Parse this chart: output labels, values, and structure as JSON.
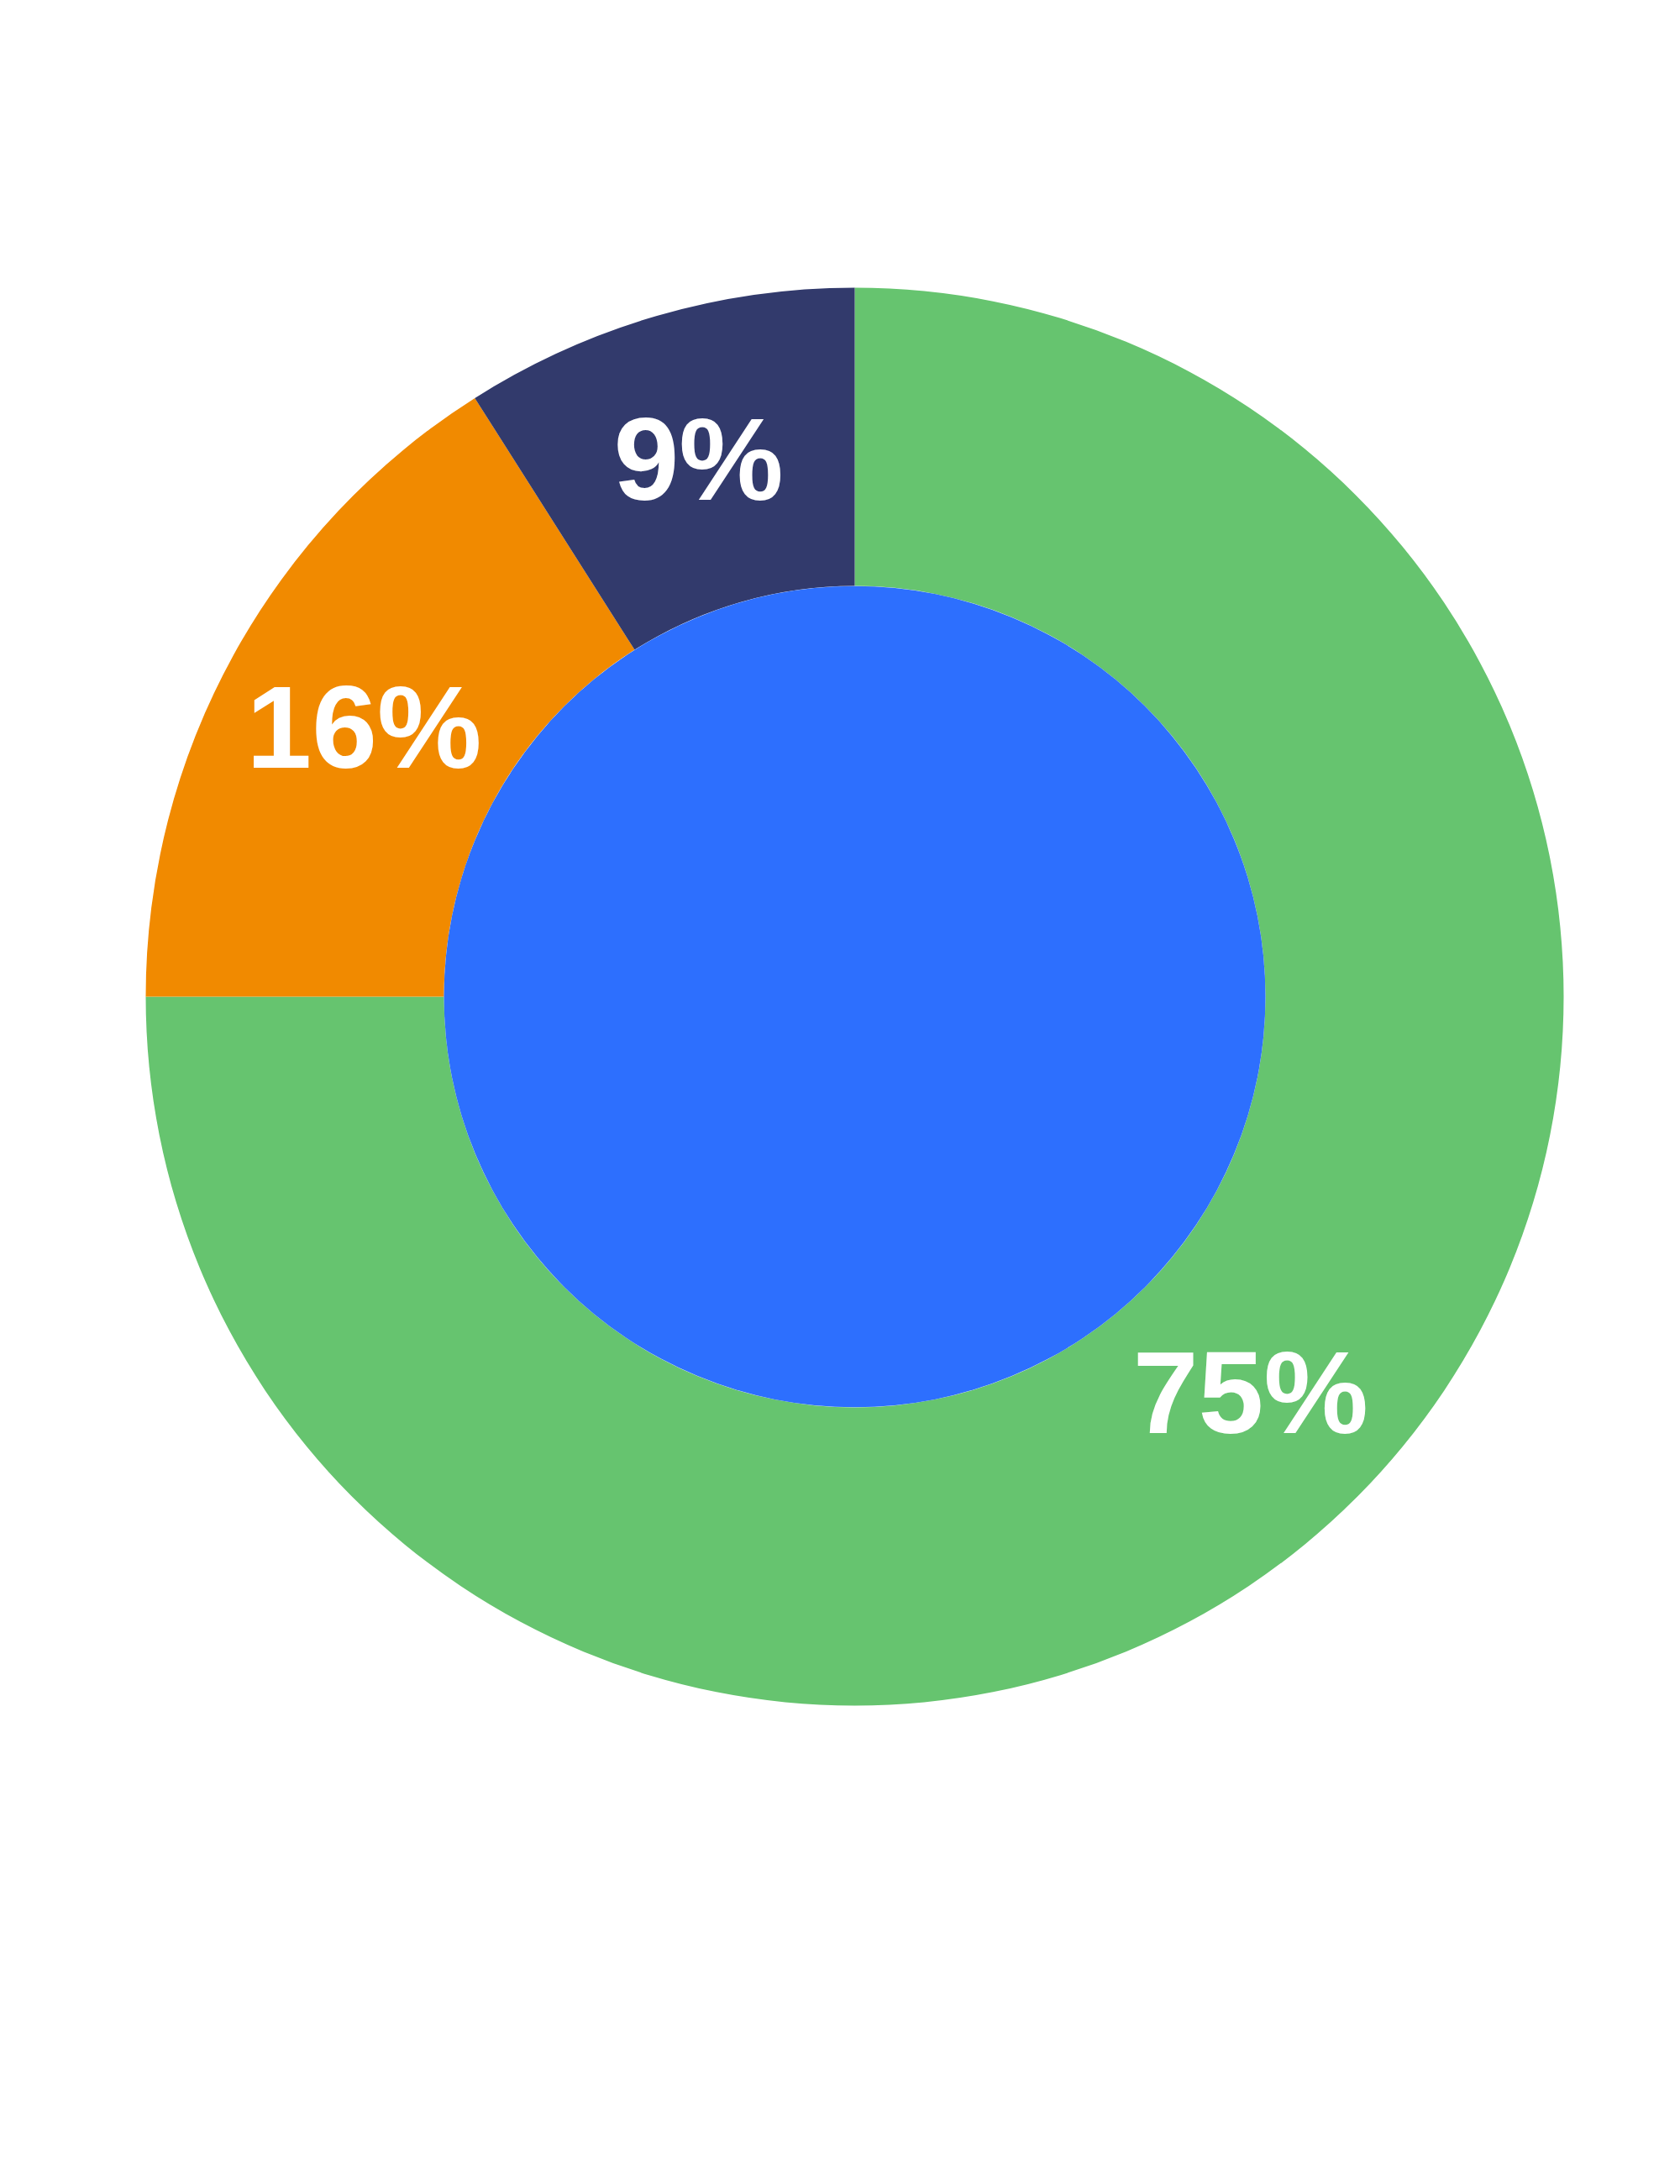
{
  "chart_data": {
    "type": "donut",
    "categories": [
      null,
      null,
      null
    ],
    "values": [
      75,
      16,
      9
    ],
    "value_labels": [
      "75%",
      "16%",
      "9%"
    ],
    "colors": [
      "#66c46f",
      "#f18a00",
      "#323a6c"
    ]
  }
}
